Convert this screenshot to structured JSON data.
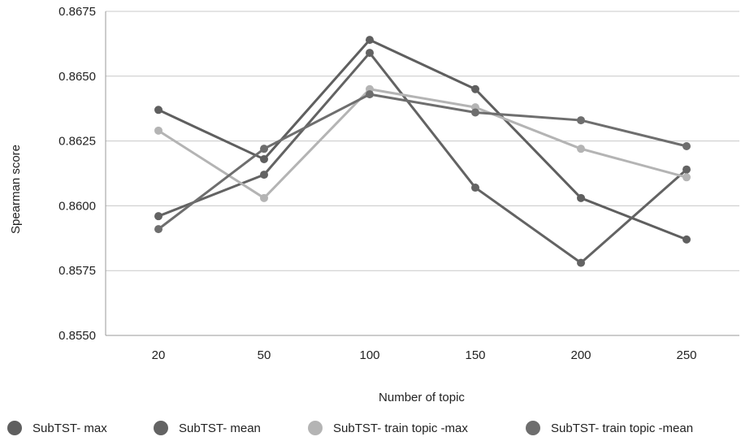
{
  "chart_data": {
    "type": "line",
    "title": "",
    "xlabel": "Number of topic",
    "ylabel": "Spearman score",
    "categories": [
      "20",
      "50",
      "100",
      "150",
      "200",
      "250"
    ],
    "ylim": [
      0.855,
      0.8675
    ],
    "yticks": [
      "0.8550",
      "0.8575",
      "0.8600",
      "0.8625",
      "0.8650",
      "0.8675"
    ],
    "grid": true,
    "legend_position": "bottom",
    "series": [
      {
        "name": "SubTST- max",
        "color": "#5f5f5f",
        "values": [
          0.8637,
          0.8618,
          0.8664,
          0.8645,
          0.8603,
          0.8587
        ]
      },
      {
        "name": "SubTST- mean",
        "color": "#636363",
        "values": [
          0.8596,
          0.8612,
          0.8659,
          0.8607,
          0.8578,
          0.8614
        ]
      },
      {
        "name": "SubTST- train topic -max",
        "color": "#b4b4b4",
        "values": [
          0.8629,
          0.8603,
          0.8645,
          0.8638,
          0.8622,
          0.8611
        ]
      },
      {
        "name": "SubTST- train topic -mean",
        "color": "#6e6e6e",
        "values": [
          0.8591,
          0.8622,
          0.8643,
          0.8636,
          0.8633,
          0.8623
        ]
      }
    ]
  }
}
